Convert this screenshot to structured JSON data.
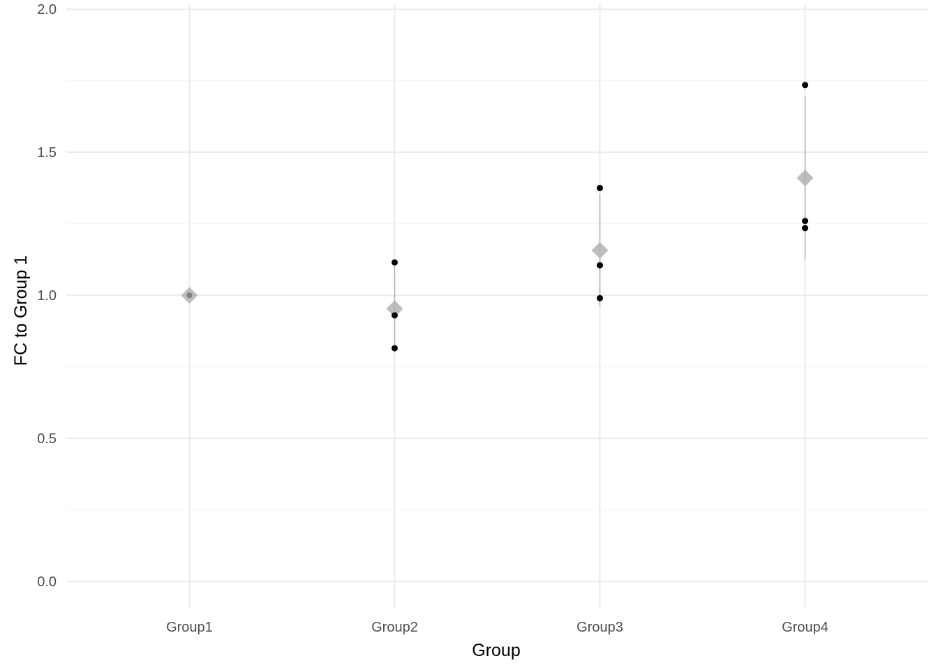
{
  "chart_data": {
    "type": "scatter",
    "xlabel": "Group",
    "ylabel": "FC to Group 1",
    "categories": [
      "Group1",
      "Group2",
      "Group3",
      "Group4"
    ],
    "ylim": [
      -0.09,
      2.02
    ],
    "yticks": [
      0.0,
      0.5,
      1.0,
      1.5,
      2.0
    ],
    "ytick_labels": [
      "0.0",
      "0.5",
      "1.0",
      "1.5",
      "2.0"
    ],
    "grid": true,
    "legend": "none",
    "points": [
      {
        "category": "Group1",
        "values": [
          1.0,
          1.0,
          1.0
        ]
      },
      {
        "category": "Group2",
        "values": [
          1.115,
          0.93,
          0.815
        ]
      },
      {
        "category": "Group3",
        "values": [
          1.375,
          1.105,
          0.99
        ]
      },
      {
        "category": "Group4",
        "values": [
          1.735,
          1.26,
          1.235
        ]
      }
    ],
    "summary": [
      {
        "category": "Group1",
        "mean": 1.0,
        "lower": 1.0,
        "upper": 1.0
      },
      {
        "category": "Group2",
        "mean": 0.953,
        "lower": 0.8,
        "upper": 1.107
      },
      {
        "category": "Group3",
        "mean": 1.157,
        "lower": 0.96,
        "upper": 1.355
      },
      {
        "category": "Group4",
        "mean": 1.41,
        "lower": 1.125,
        "upper": 1.695
      }
    ],
    "colors": {
      "point": "#000000",
      "summary": "#b3b3b3",
      "errorbar": "#b3b3b3",
      "grid_major": "#ebebeb",
      "grid_minor": "#f5f5f5"
    }
  }
}
